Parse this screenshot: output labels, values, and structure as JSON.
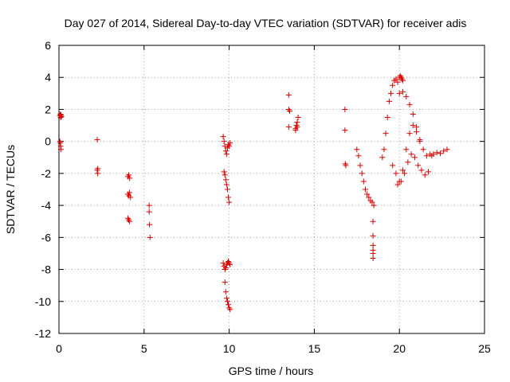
{
  "chart_data": {
    "type": "scatter",
    "title": "Day 027 of 2014, Sidereal Day-to-day VTEC variation (SDTVAR) for receiver adis",
    "xlabel": "GPS time / hours",
    "ylabel": "SDTVAR / TECUs",
    "xlim": [
      0,
      25
    ],
    "ylim": [
      -12,
      6
    ],
    "xticks": [
      0,
      5,
      10,
      15,
      20,
      25
    ],
    "yticks": [
      -12,
      -10,
      -8,
      -6,
      -4,
      -2,
      0,
      2,
      4,
      6
    ],
    "grid": true,
    "marker": "+",
    "color": "#dd0000",
    "series": [
      {
        "name": "SDTVAR",
        "x": [
          0.05,
          0.08,
          0.1,
          0.12,
          0.15,
          0.05,
          0.08,
          0.1,
          0.12,
          2.25,
          2.25,
          2.28,
          2.28,
          4.05,
          4.1,
          4.15,
          4.05,
          4.1,
          4.15,
          4.2,
          4.05,
          4.1,
          4.15,
          5.3,
          5.3,
          5.32,
          5.35,
          9.65,
          9.7,
          9.75,
          9.8,
          9.85,
          9.9,
          9.95,
          10.0,
          10.05,
          9.7,
          9.75,
          9.8,
          9.85,
          9.9,
          9.95,
          10.0,
          9.65,
          9.7,
          9.75,
          9.8,
          9.85,
          9.9,
          9.95,
          10.0,
          10.05,
          9.75,
          9.8,
          9.85,
          9.9,
          9.95,
          10.0,
          10.05,
          13.5,
          13.5,
          13.55,
          13.5,
          13.9,
          13.95,
          14.0,
          14.05,
          13.9,
          14.0,
          16.8,
          16.8,
          16.82,
          16.85,
          17.5,
          17.6,
          17.7,
          17.8,
          17.9,
          18.0,
          18.1,
          18.2,
          18.3,
          18.4,
          18.5,
          18.45,
          18.45,
          18.45,
          18.45,
          18.45,
          18.45,
          19.0,
          19.1,
          19.2,
          19.3,
          19.4,
          19.5,
          19.6,
          19.7,
          19.8,
          19.9,
          20.0,
          20.05,
          20.1,
          20.15,
          20.2,
          19.6,
          19.8,
          20.0,
          20.2,
          20.4,
          20.6,
          20.8,
          21.0,
          21.2,
          20.0,
          20.2,
          20.4,
          20.6,
          20.8,
          21.0,
          21.2,
          21.4,
          21.6,
          21.8,
          21.9,
          22.0,
          22.2,
          22.4,
          22.6,
          22.8,
          19.9,
          20.1,
          20.3,
          20.5,
          20.7,
          20.9,
          21.1,
          21.3,
          21.5,
          21.7
        ],
        "y": [
          1.6,
          1.7,
          1.5,
          1.65,
          1.55,
          0.0,
          -0.1,
          -0.3,
          -0.5,
          0.1,
          -1.8,
          -1.7,
          -2.0,
          -2.2,
          -2.1,
          -2.3,
          -3.3,
          -3.4,
          -3.2,
          -3.5,
          -4.8,
          -4.9,
          -5.0,
          -4.0,
          -4.4,
          -5.2,
          -6.0,
          0.3,
          0.0,
          -0.3,
          -0.6,
          -0.8,
          -0.4,
          -0.2,
          -0.3,
          -0.1,
          -1.9,
          -2.1,
          -2.4,
          -2.7,
          -3.0,
          -3.5,
          -3.8,
          -7.6,
          -7.8,
          -8.0,
          -7.9,
          -7.7,
          -7.6,
          -7.5,
          -7.6,
          -7.7,
          -8.8,
          -9.4,
          -9.8,
          -10.0,
          -10.2,
          -10.4,
          -10.5,
          2.9,
          2.0,
          1.9,
          0.9,
          0.7,
          1.0,
          1.2,
          1.5,
          0.8,
          0.9,
          2.0,
          0.7,
          -1.4,
          -1.5,
          -0.5,
          -0.9,
          -1.5,
          -2.0,
          -2.5,
          -3.0,
          -3.3,
          -3.5,
          -3.7,
          -3.8,
          -4.0,
          -5.0,
          -5.9,
          -6.5,
          -6.8,
          -7.0,
          -7.3,
          -1.0,
          -0.5,
          0.5,
          1.5,
          2.5,
          3.0,
          3.5,
          3.8,
          3.9,
          3.7,
          4.0,
          4.1,
          4.0,
          3.9,
          3.8,
          -1.5,
          -2.0,
          -2.5,
          -1.8,
          -0.5,
          0.5,
          1.0,
          0.6,
          0.0,
          3.0,
          3.1,
          2.8,
          2.3,
          1.7,
          0.9,
          0.1,
          -0.5,
          -0.9,
          -0.8,
          -0.9,
          -0.8,
          -0.7,
          -0.75,
          -0.6,
          -0.5,
          -2.7,
          -2.5,
          -2.0,
          -1.3,
          -0.8,
          -1.0,
          -1.5,
          -1.8,
          -2.1,
          -1.9
        ]
      }
    ]
  }
}
